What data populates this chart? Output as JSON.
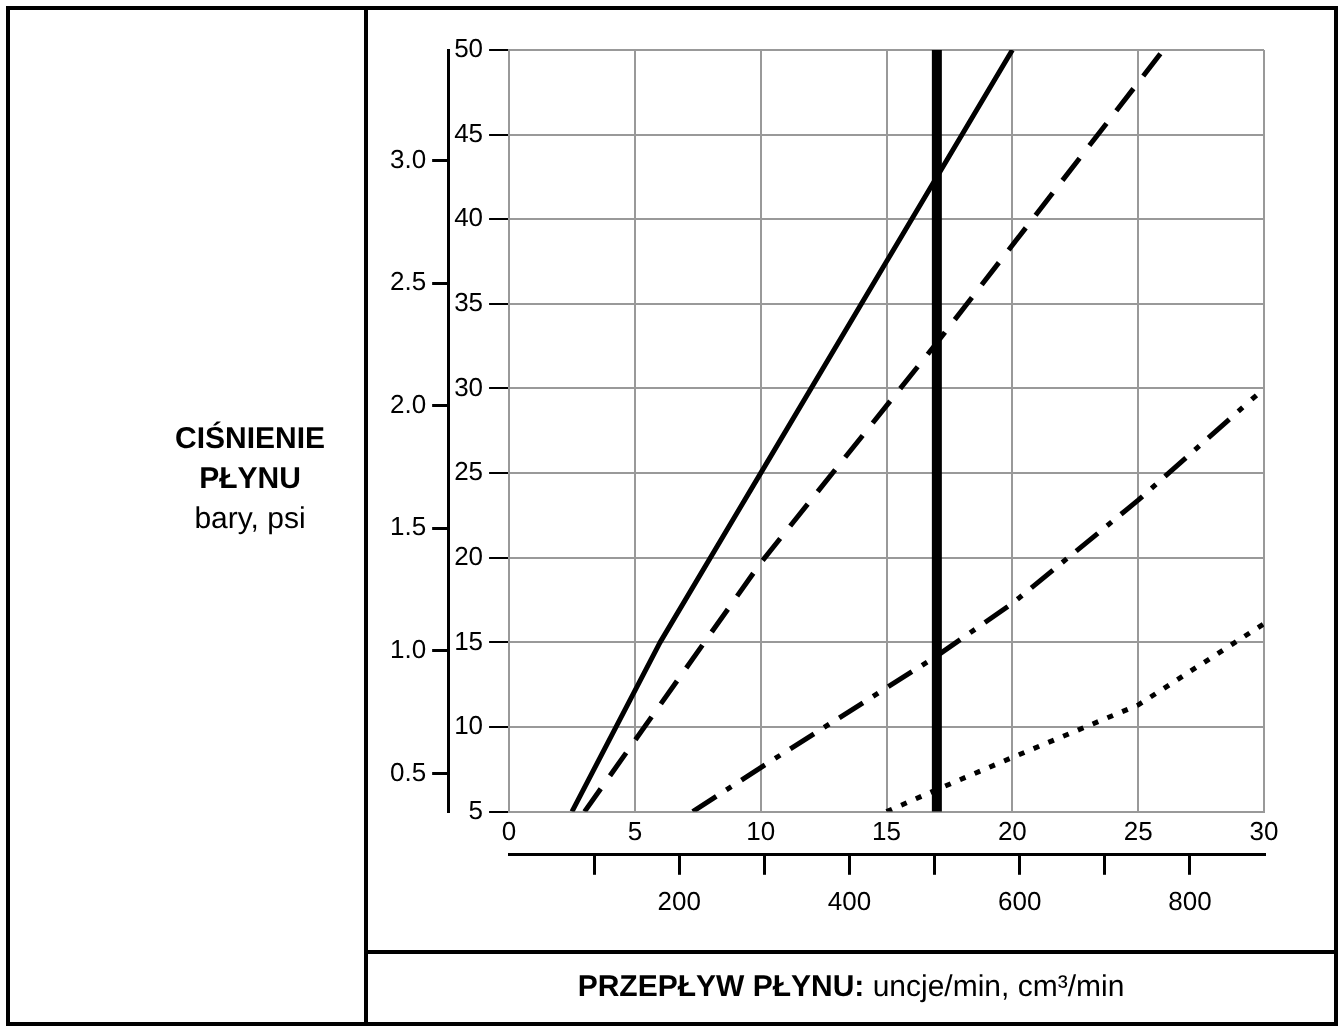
{
  "chart_data": {
    "type": "line",
    "xlabel": "PRZEPŁYW PŁYNU: uncje/min, cm³/min",
    "y2label": "CIŚNIENIE PŁYNU\nbary, psi",
    "xlim": [
      0,
      30
    ],
    "xticks": [
      0,
      5,
      10,
      15,
      20,
      25,
      30
    ],
    "x2lim": [
      0,
      887
    ],
    "x2ticks": [
      {
        "value": 100,
        "label": null
      },
      200,
      {
        "value": 300,
        "label": null
      },
      400,
      {
        "value": 500,
        "label": null
      },
      600,
      {
        "value": 700,
        "label": null
      },
      800
    ],
    "ylim": [
      5,
      50
    ],
    "yticks": [
      5,
      10,
      15,
      20,
      25,
      30,
      35,
      40,
      45,
      50
    ],
    "y2lim": [
      0.345,
      3.45
    ],
    "y2ticks": [
      0.5,
      {
        "value": 1,
        "label": "1.0"
      },
      1.5,
      {
        "value": 2,
        "label": "2.0"
      },
      2.5,
      {
        "value": 3,
        "label": "3.0"
      }
    ],
    "series": [
      {
        "color": "#000000",
        "line_style": "solid",
        "x": [
          2.5,
          6,
          10,
          15,
          20
        ],
        "values": [
          5,
          15,
          25,
          37.5,
          50
        ]
      },
      {
        "color": "#000000",
        "line_style": "dashed",
        "x": [
          3,
          10,
          17,
          26
        ],
        "values": [
          5,
          19.7,
          32.7,
          50
        ]
      },
      {
        "color": "#000000",
        "line_style": "dashdot",
        "x": [
          7.3,
          10,
          17,
          20,
          25,
          29.7
        ],
        "values": [
          5,
          7.6,
          14.2,
          17.3,
          23.4,
          29.6
        ]
      },
      {
        "color": "#000000",
        "line_style": "dotted",
        "x": [
          15,
          17,
          20,
          25,
          30
        ],
        "values": [
          5,
          6.3,
          8.2,
          11.3,
          16.1
        ]
      }
    ],
    "ref_lines": [
      {
        "axis": "x",
        "value": 17,
        "color": "#000000"
      }
    ],
    "grid": true,
    "legend": false,
    "marker": "none"
  }
}
